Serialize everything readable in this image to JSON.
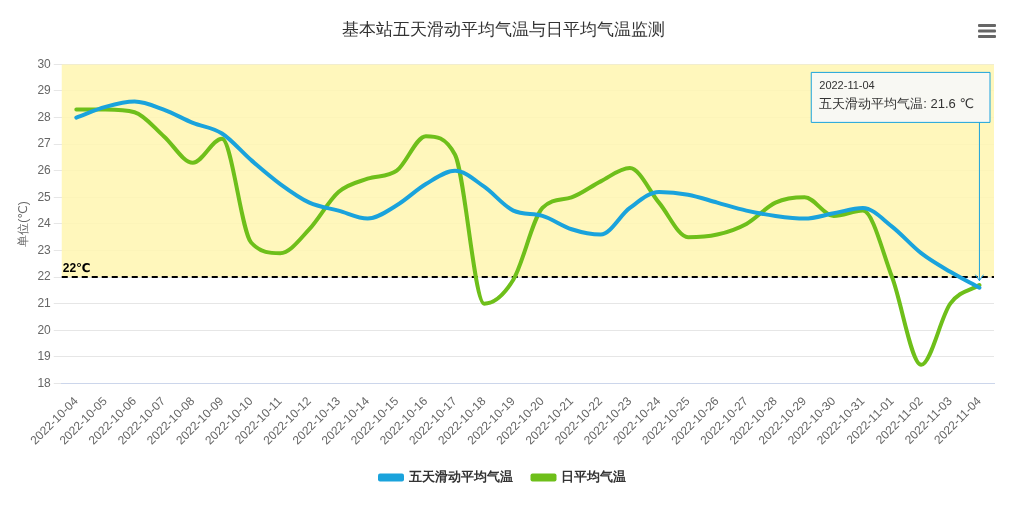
{
  "chart_data": {
    "type": "line",
    "title": "基本站五天滑动平均气温与日平均气温监测",
    "ylabel": "单位(℃)",
    "categories": [
      "2022-10-04",
      "2022-10-05",
      "2022-10-06",
      "2022-10-07",
      "2022-10-08",
      "2022-10-09",
      "2022-10-10",
      "2022-10-11",
      "2022-10-12",
      "2022-10-13",
      "2022-10-14",
      "2022-10-15",
      "2022-10-16",
      "2022-10-17",
      "2022-10-18",
      "2022-10-19",
      "2022-10-20",
      "2022-10-21",
      "2022-10-22",
      "2022-10-23",
      "2022-10-24",
      "2022-10-25",
      "2022-10-26",
      "2022-10-27",
      "2022-10-28",
      "2022-10-29",
      "2022-10-30",
      "2022-10-31",
      "2022-11-01",
      "2022-11-02",
      "2022-11-03",
      "2022-11-04"
    ],
    "series": [
      {
        "name": "五天滑动平均气温",
        "color": "#1aa3dc",
        "values": [
          28.0,
          28.4,
          28.6,
          28.3,
          27.8,
          27.4,
          26.4,
          25.5,
          24.8,
          24.5,
          24.2,
          24.7,
          25.5,
          26.0,
          25.4,
          24.5,
          24.3,
          23.8,
          23.6,
          24.6,
          25.2,
          25.1,
          24.8,
          24.5,
          24.3,
          24.2,
          24.4,
          24.6,
          23.9,
          22.9,
          22.2,
          21.6
        ]
      },
      {
        "name": "日平均气温",
        "color": "#6ebf1a",
        "values": [
          28.3,
          28.3,
          28.2,
          27.3,
          26.3,
          27.2,
          23.3,
          22.9,
          23.8,
          25.2,
          25.7,
          26.0,
          27.3,
          26.6,
          21.0,
          21.9,
          24.6,
          25.0,
          25.6,
          26.1,
          24.8,
          23.5,
          23.6,
          24.0,
          24.8,
          25.0,
          24.3,
          24.5,
          22.0,
          18.7,
          21.0,
          21.7
        ]
      }
    ],
    "ylim": [
      18,
      30
    ],
    "yticks": [
      18,
      19,
      20,
      21,
      22,
      23,
      24,
      25,
      26,
      27,
      28,
      29,
      30
    ],
    "grid": "y",
    "legend": "bottom",
    "marker": "none",
    "line_style": "solid",
    "bands": [
      {
        "axis": "y",
        "from": 22,
        "to": 30,
        "color": "#fff6b0"
      }
    ],
    "ref_lines": [
      {
        "axis": "y",
        "value": 22,
        "label": "22℃",
        "color": "#000000",
        "line_style": "dashed"
      }
    ],
    "annotations": [
      {
        "text": "2022-11-04\n五天滑动平均气温: 21.6 ℃",
        "x": "2022-11-04",
        "y": 21.6
      }
    ]
  }
}
